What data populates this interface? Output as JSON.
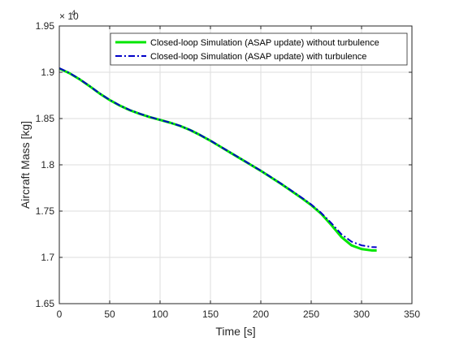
{
  "chart_data": {
    "type": "line",
    "title": "",
    "xlabel": "Time [s]",
    "ylabel": "Aircraft Mass [kg]",
    "xlim": [
      0,
      350
    ],
    "ylim": [
      16500,
      19500
    ],
    "grid": true,
    "legend_position": "top-right",
    "y_exponent_label": "× 10",
    "y_exponent_power": "4",
    "x_ticks": [
      0,
      50,
      100,
      150,
      200,
      250,
      300,
      350
    ],
    "x_tick_labels": [
      "0",
      "50",
      "100",
      "150",
      "200",
      "250",
      "300",
      "350"
    ],
    "y_ticks": [
      16500,
      17000,
      17500,
      18000,
      18500,
      19000,
      19500
    ],
    "y_tick_labels": [
      "1.65",
      "1.7",
      "1.75",
      "1.8",
      "1.85",
      "1.9",
      "1.95"
    ],
    "series": [
      {
        "name": "Closed-loop Simulation (ASAP update) without turbulence",
        "color": "#00e600",
        "style": "solid",
        "x": [
          0,
          10,
          20,
          30,
          40,
          50,
          60,
          70,
          80,
          90,
          100,
          110,
          120,
          130,
          140,
          150,
          160,
          170,
          180,
          190,
          200,
          210,
          220,
          230,
          240,
          250,
          260,
          270,
          280,
          290,
          300,
          310,
          315
        ],
        "y": [
          19040,
          18990,
          18925,
          18850,
          18770,
          18700,
          18640,
          18590,
          18550,
          18515,
          18485,
          18455,
          18420,
          18375,
          18320,
          18260,
          18195,
          18130,
          18065,
          18000,
          17935,
          17865,
          17795,
          17720,
          17645,
          17565,
          17470,
          17350,
          17220,
          17130,
          17090,
          17075,
          17075
        ]
      },
      {
        "name": "Closed-loop Simulation (ASAP update) with turbulence",
        "color": "#0000c8",
        "style": "dashdot",
        "x": [
          0,
          10,
          20,
          30,
          40,
          50,
          60,
          70,
          80,
          90,
          100,
          110,
          120,
          130,
          140,
          150,
          160,
          170,
          180,
          190,
          200,
          210,
          220,
          230,
          240,
          250,
          260,
          270,
          280,
          290,
          300,
          310,
          315
        ],
        "y": [
          19045,
          18993,
          18928,
          18852,
          18772,
          18702,
          18642,
          18592,
          18552,
          18516,
          18486,
          18456,
          18421,
          18376,
          18321,
          18262,
          18197,
          18132,
          18067,
          18002,
          17937,
          17868,
          17798,
          17724,
          17650,
          17572,
          17480,
          17370,
          17250,
          17170,
          17130,
          17112,
          17110
        ]
      }
    ]
  }
}
